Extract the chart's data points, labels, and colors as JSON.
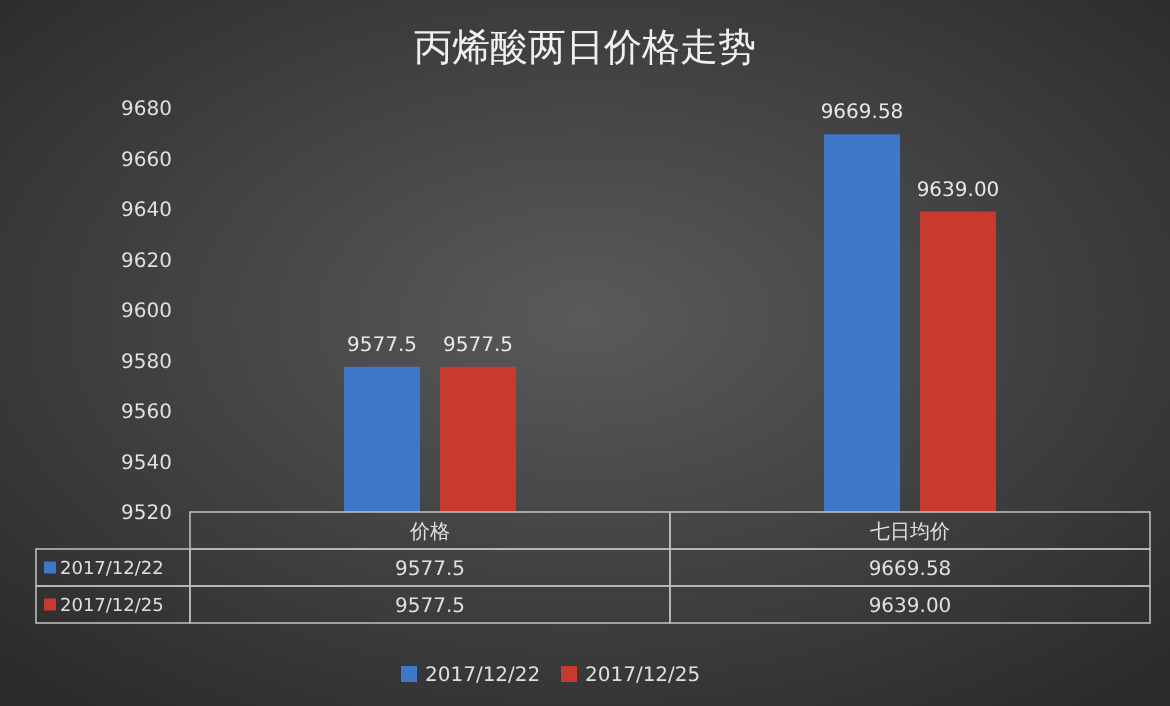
{
  "chart_data": {
    "type": "bar",
    "title": "丙烯酸两日价格走势",
    "categories": [
      "价格",
      "七日均价"
    ],
    "series": [
      {
        "name": "2017/12/22",
        "color": "#3f78c8",
        "values": [
          9577.5,
          9669.58
        ],
        "value_labels": [
          "9577.5",
          "9669.58"
        ]
      },
      {
        "name": "2017/12/25",
        "color": "#c8392f",
        "values": [
          9577.5,
          9639.0
        ],
        "value_labels": [
          "9577.5",
          "9639.00"
        ]
      }
    ],
    "ylim": [
      9520,
      9680
    ],
    "yticks": [
      9520,
      9540,
      9560,
      9580,
      9600,
      9620,
      9640,
      9660,
      9680
    ],
    "grid": false,
    "data_labels": true,
    "legend": "bottom"
  }
}
